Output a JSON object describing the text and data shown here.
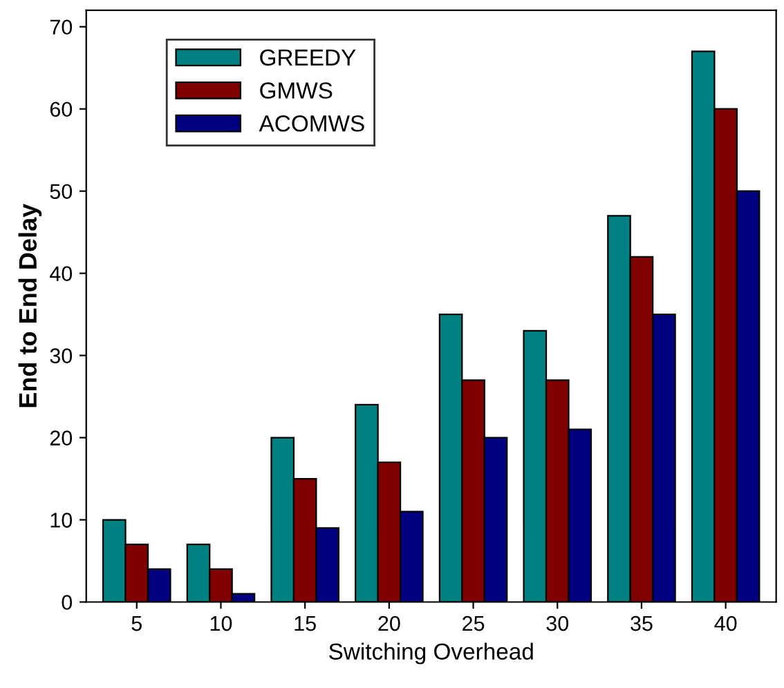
{
  "chart_data": {
    "type": "bar",
    "xlabel": "Switching Overhead",
    "ylabel": "End to End Delay",
    "categories": [
      "5",
      "10",
      "15",
      "20",
      "25",
      "30",
      "35",
      "40"
    ],
    "series": [
      {
        "name": "GREEDY",
        "color": "#008080",
        "values": [
          10,
          7,
          20,
          24,
          35,
          33,
          47,
          67
        ]
      },
      {
        "name": "GMWS",
        "color": "#800000",
        "values": [
          7,
          4,
          15,
          17,
          27,
          27,
          42,
          60
        ]
      },
      {
        "name": "ACOMWS",
        "color": "#000080",
        "values": [
          4,
          1,
          9,
          11,
          20,
          21,
          35,
          50
        ]
      }
    ],
    "ylim": [
      0,
      72
    ],
    "yticks": [
      0,
      10,
      20,
      30,
      40,
      50,
      60,
      70
    ],
    "grid": false,
    "legend": "top left"
  }
}
